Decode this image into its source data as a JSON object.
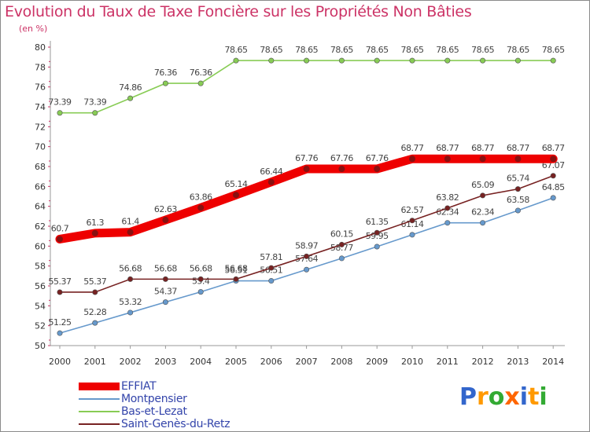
{
  "header": {
    "title": "Evolution du Taux de Taxe Foncière sur les Propriétés Non Bâties",
    "unit": "(en %)"
  },
  "logo": {
    "letters": [
      "P",
      "r",
      "o",
      "x",
      "i",
      "t",
      "i"
    ],
    "colors": [
      "#3366cc",
      "#ff9900",
      "#33aa33",
      "#ff6600",
      "#3366cc",
      "#ff9900",
      "#33aa33"
    ]
  },
  "chart_data": {
    "type": "line",
    "x": [
      "2000",
      "2001",
      "2002",
      "2003",
      "2004",
      "2005",
      "2006",
      "2007",
      "2008",
      "2009",
      "2010",
      "2011",
      "2012",
      "2013",
      "2014"
    ],
    "ylim": [
      50,
      80
    ],
    "yticks": [
      50,
      52,
      54,
      56,
      58,
      60,
      62,
      64,
      66,
      68,
      70,
      72,
      74,
      76,
      78,
      80
    ],
    "grid": false,
    "legend_position": "bottom-left",
    "series": [
      {
        "name": "EFFIAT",
        "color": "#ee0000",
        "values": [
          60.7,
          61.3,
          61.4,
          62.63,
          63.86,
          65.14,
          66.44,
          67.76,
          67.76,
          67.76,
          68.77,
          68.77,
          68.77,
          68.77,
          68.77
        ],
        "labels": [
          "60.7",
          "61.3",
          "61.4",
          "62.63",
          "63.86",
          "65.14",
          "66.44",
          "67.76",
          "67.76",
          "67.76",
          "68.77",
          "68.77",
          "68.77",
          "68.77",
          "68.77"
        ]
      },
      {
        "name": "Montpensier",
        "color": "#6699cc",
        "values": [
          51.25,
          52.28,
          53.32,
          54.37,
          55.4,
          56.51,
          56.51,
          57.64,
          58.77,
          59.95,
          61.14,
          62.34,
          62.34,
          63.58,
          64.85
        ],
        "labels": [
          "51.25",
          "52.28",
          "53.32",
          "54.37",
          "55.4",
          "56.51",
          "56.51",
          "57.64",
          "58.77",
          "59.95",
          "61.14",
          "62.34",
          "62.34",
          "63.58",
          "64.85"
        ]
      },
      {
        "name": "Bas-et-Lezat",
        "color": "#88cc55",
        "values": [
          73.39,
          73.39,
          74.86,
          76.36,
          76.36,
          78.65,
          78.65,
          78.65,
          78.65,
          78.65,
          78.65,
          78.65,
          78.65,
          78.65,
          78.65
        ],
        "labels": [
          "73.39",
          "73.39",
          "74.86",
          "76.36",
          "76.36",
          "78.65",
          "78.65",
          "78.65",
          "78.65",
          "78.65",
          "78.65",
          "78.65",
          "78.65",
          "78.65",
          "78.65"
        ]
      },
      {
        "name": "Saint-Genès-du-Retz",
        "color": "#772222",
        "values": [
          55.37,
          55.37,
          56.68,
          56.68,
          56.68,
          56.68,
          57.81,
          58.97,
          60.15,
          61.35,
          62.57,
          63.82,
          65.09,
          65.74,
          67.07
        ],
        "labels": [
          "55.37",
          "55.37",
          "56.68",
          "56.68",
          "56.68",
          "56.68",
          "57.81",
          "58.97",
          "60.15",
          "61.35",
          "62.57",
          "63.82",
          "65.09",
          "65.74",
          "67.07"
        ]
      }
    ]
  }
}
